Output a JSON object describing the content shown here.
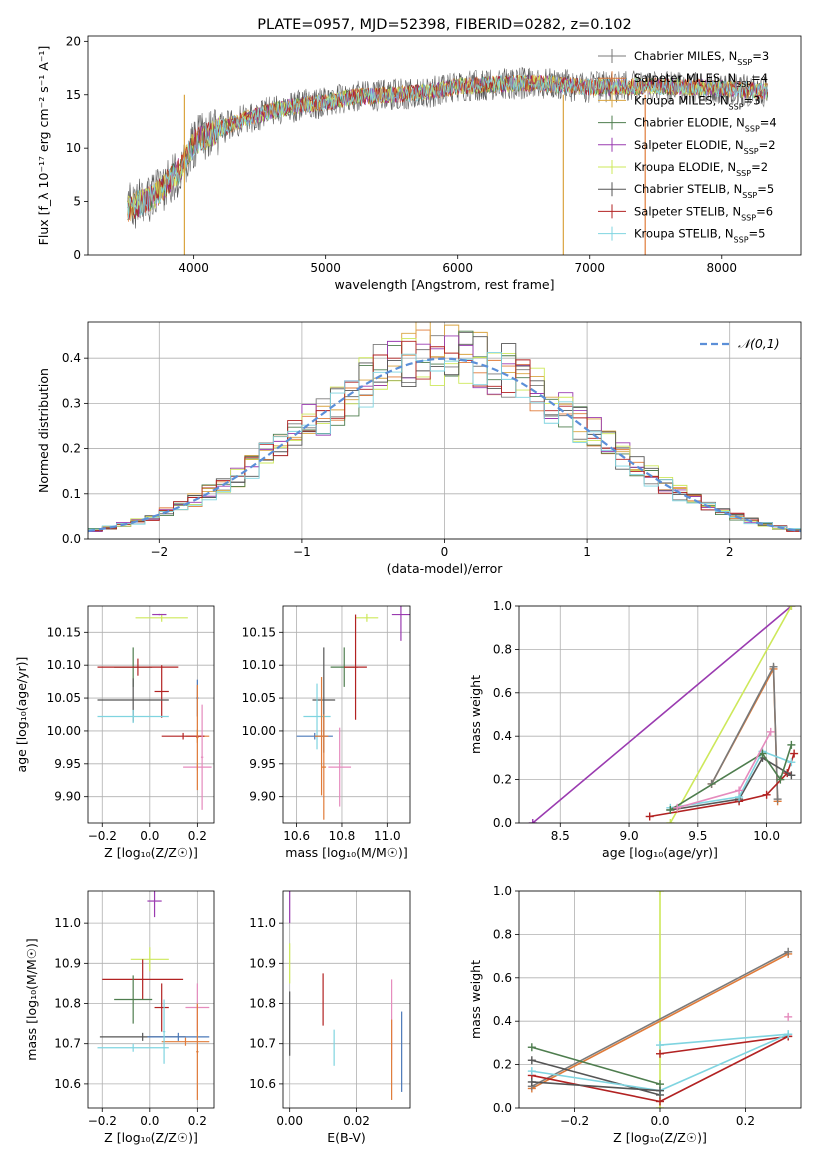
{
  "colors": {
    "chabrier_miles": "#7a7a7a",
    "salpeter_miles": "#e07b39",
    "kroupa_miles": "#d9a440",
    "chabrier_elodie": "#4e7d4e",
    "salpeter_elodie": "#9a3bb0",
    "kroupa_elodie": "#cde85a",
    "chabrier_stelib": "#555555",
    "salpeter_stelib": "#b22222",
    "kroupa_stelib": "#7fd4e0",
    "normal": "#5b8fd8",
    "pink": "#e58bbd",
    "steel": "#4a78b8"
  },
  "chart_data": [
    {
      "id": "spectrum",
      "type": "line",
      "title": "PLATE=0957, MJD=52398, FIBERID=0282, z=0.102",
      "xlabel": "wavelength [Angstrom, rest frame]",
      "ylabel": "Flux [f_λ 10⁻¹⁷ erg cm⁻² s⁻¹ A⁻¹]",
      "xlim": [
        3200,
        8600
      ],
      "ylim": [
        0,
        20.5
      ],
      "xticks": [
        4000,
        5000,
        6000,
        7000,
        8000
      ],
      "yticks": [
        0,
        5,
        10,
        15,
        20
      ],
      "legend_position": "right",
      "legend": [
        {
          "label": "Chabrier MILES, N_SSP=3",
          "color": "chabrier_miles"
        },
        {
          "label": "Salpeter MILES, N_SSP=4",
          "color": "salpeter_miles"
        },
        {
          "label": "Kroupa MILES, N_SSP=3",
          "color": "kroupa_miles"
        },
        {
          "label": "Chabrier ELODIE, N_SSP=4",
          "color": "chabrier_elodie"
        },
        {
          "label": "Salpeter ELODIE, N_SSP=2",
          "color": "salpeter_elodie"
        },
        {
          "label": "Kroupa ELODIE, N_SSP=2",
          "color": "kroupa_elodie"
        },
        {
          "label": "Chabrier STELIB, N_SSP=5",
          "color": "chabrier_stelib"
        },
        {
          "label": "Salpeter STELIB, N_SSP=6",
          "color": "salpeter_stelib"
        },
        {
          "label": "Kroupa STELIB, N_SSP=5",
          "color": "kroupa_stelib"
        }
      ],
      "continuum": [
        [
          3500,
          4.3
        ],
        [
          3700,
          5.5
        ],
        [
          3900,
          8.0
        ],
        [
          4000,
          10.5
        ],
        [
          4200,
          11.8
        ],
        [
          4400,
          12.8
        ],
        [
          4600,
          13.5
        ],
        [
          4800,
          14.0
        ],
        [
          5000,
          14.3
        ],
        [
          5200,
          14.8
        ],
        [
          5500,
          15.0
        ],
        [
          5800,
          15.3
        ],
        [
          6000,
          15.8
        ],
        [
          6300,
          16.0
        ],
        [
          6600,
          16.1
        ],
        [
          7000,
          15.7
        ],
        [
          7500,
          15.8
        ],
        [
          8000,
          15.6
        ],
        [
          8350,
          15.3
        ]
      ],
      "spikes": [
        {
          "x": 3930,
          "color": "kroupa_miles"
        },
        {
          "x": 6800,
          "color": "kroupa_miles"
        },
        {
          "x": 7420,
          "color": "salpeter_miles"
        }
      ]
    },
    {
      "id": "residual_histogram",
      "type": "bar",
      "xlabel": "(data-model)/error",
      "ylabel": "Normed distribution",
      "xlim": [
        -2.5,
        2.5
      ],
      "ylim": [
        0,
        0.48
      ],
      "xticks": [
        -2,
        -1,
        0,
        1,
        2
      ],
      "yticks": [
        0.0,
        0.1,
        0.2,
        0.3,
        0.4
      ],
      "bin_width": 0.1,
      "legend_position": "upper right",
      "legend": [
        {
          "label": "𝒩(0,1)",
          "color": "normal",
          "style": "dashed"
        }
      ],
      "series_colors": [
        "chabrier_miles",
        "salpeter_miles",
        "kroupa_miles",
        "chabrier_elodie",
        "salpeter_elodie",
        "kroupa_elodie",
        "chabrier_stelib",
        "salpeter_stelib",
        "kroupa_stelib"
      ]
    },
    {
      "id": "age_vs_Z",
      "type": "scatter",
      "xlabel": "Z [log₁₀(Z/Z☉)]",
      "ylabel": "age  [log₁₀(age/yr)]",
      "xlim": [
        -0.26,
        0.27
      ],
      "ylim": [
        9.86,
        10.19
      ],
      "xticks": [
        -0.2,
        0.0,
        0.2
      ],
      "yticks": [
        9.9,
        9.95,
        10.0,
        10.05,
        10.1,
        10.15
      ],
      "points": [
        {
          "x": 0.05,
          "y": 10.172,
          "xerr": 0.11,
          "yerr": 0.006,
          "color": "kroupa_elodie"
        },
        {
          "x": 0.04,
          "y": 10.177,
          "xerr": 0.03,
          "yerr": 0.001,
          "color": "salpeter_elodie"
        },
        {
          "x": -0.07,
          "y": 10.097,
          "xerr": 0.08,
          "yerr": 0.03,
          "color": "chabrier_elodie"
        },
        {
          "x": -0.05,
          "y": 10.097,
          "xerr": 0.17,
          "yerr": 0.013,
          "color": "salpeter_stelib"
        },
        {
          "x": 0.05,
          "y": 10.06,
          "xerr": 0.03,
          "yerr": 0.04,
          "color": "salpeter_stelib"
        },
        {
          "x": -0.07,
          "y": 10.047,
          "xerr": 0.15,
          "yerr": 0.033,
          "color": "chabrier_stelib"
        },
        {
          "x": -0.07,
          "y": 10.022,
          "xerr": 0.15,
          "yerr": 0.01,
          "color": "kroupa_stelib"
        },
        {
          "x": 0.2,
          "y": 10.05,
          "xerr": 0.005,
          "yerr": 0.028,
          "color": "steel"
        },
        {
          "x": 0.2,
          "y": 9.992,
          "xerr": 0.05,
          "yerr": 0.01,
          "color": "salpeter_miles"
        },
        {
          "x": 0.14,
          "y": 9.992,
          "xerr": 0.09,
          "yerr": 0.005,
          "color": "salpeter_stelib"
        },
        {
          "x": 0.2,
          "y": 9.945,
          "xerr": 0.06,
          "yerr": 0.005,
          "color": "pink"
        },
        {
          "x": 0.22,
          "y": 9.96,
          "xerr": 0.005,
          "yerr": 0.08,
          "color": "pink"
        },
        {
          "x": 0.2,
          "y": 9.99,
          "xerr": 0.005,
          "yerr": 0.08,
          "color": "salpeter_miles"
        }
      ]
    },
    {
      "id": "age_vs_mass",
      "type": "scatter",
      "xlabel": "mass [log₁₀(M/M☉)]",
      "ylabel": "",
      "xlim": [
        10.54,
        11.1
      ],
      "ylim": [
        9.86,
        10.19
      ],
      "xticks": [
        10.6,
        10.8,
        11.0
      ],
      "yticks": [
        9.9,
        9.95,
        10.0,
        10.05,
        10.1,
        10.15
      ],
      "points": [
        {
          "x": 10.91,
          "y": 10.172,
          "xerr": 0.05,
          "yerr": 0.006,
          "color": "kroupa_elodie"
        },
        {
          "x": 11.06,
          "y": 10.177,
          "xerr": 0.04,
          "yerr": 0.04,
          "color": "salpeter_elodie"
        },
        {
          "x": 10.81,
          "y": 10.097,
          "xerr": 0.06,
          "yerr": 0.03,
          "color": "chabrier_elodie"
        },
        {
          "x": 10.86,
          "y": 10.097,
          "xerr": 0.05,
          "yerr": 0.08,
          "color": "salpeter_stelib"
        },
        {
          "x": 10.72,
          "y": 10.047,
          "xerr": 0.05,
          "yerr": 0.08,
          "color": "chabrier_stelib"
        },
        {
          "x": 10.69,
          "y": 10.022,
          "xerr": 0.06,
          "yerr": 0.05,
          "color": "kroupa_stelib"
        },
        {
          "x": 10.68,
          "y": 9.992,
          "xerr": 0.08,
          "yerr": 0.005,
          "color": "steel"
        },
        {
          "x": 10.71,
          "y": 9.992,
          "xerr": 0.03,
          "yerr": 0.09,
          "color": "salpeter_miles"
        },
        {
          "x": 10.79,
          "y": 9.945,
          "xerr": 0.05,
          "yerr": 0.06,
          "color": "pink"
        },
        {
          "x": 10.72,
          "y": 9.945,
          "xerr": 0.01,
          "yerr": 0.08,
          "color": "salpeter_miles"
        }
      ]
    },
    {
      "id": "mass_weight_vs_age",
      "type": "line",
      "xlabel": "age  [log₁₀(age/yr)]",
      "ylabel": "mass weight",
      "xlim": [
        8.2,
        10.25
      ],
      "ylim": [
        0,
        1.0
      ],
      "xticks": [
        8.5,
        9.0,
        9.5,
        10.0
      ],
      "yticks": [
        0.0,
        0.2,
        0.4,
        0.6,
        0.8,
        1.0
      ],
      "series": [
        {
          "color": "salpeter_elodie",
          "x": [
            8.3,
            10.18
          ],
          "y": [
            0.0,
            1.0
          ]
        },
        {
          "color": "kroupa_elodie",
          "x": [
            9.3,
            10.18
          ],
          "y": [
            0.0,
            1.0
          ]
        },
        {
          "color": "salpeter_miles",
          "x": [
            9.6,
            10.05,
            10.08
          ],
          "y": [
            0.18,
            0.71,
            0.1
          ]
        },
        {
          "color": "chabrier_miles",
          "x": [
            9.6,
            10.05,
            10.08
          ],
          "y": [
            0.18,
            0.72,
            0.11
          ]
        },
        {
          "color": "salpeter_stelib",
          "x": [
            9.15,
            9.8,
            10.0,
            10.15,
            10.2
          ],
          "y": [
            0.03,
            0.1,
            0.13,
            0.23,
            0.32
          ]
        },
        {
          "color": "chabrier_stelib",
          "x": [
            9.3,
            9.8,
            9.97,
            10.18
          ],
          "y": [
            0.06,
            0.11,
            0.3,
            0.22
          ]
        },
        {
          "color": "kroupa_stelib",
          "x": [
            9.3,
            9.8,
            9.97,
            10.18
          ],
          "y": [
            0.07,
            0.12,
            0.33,
            0.28
          ]
        },
        {
          "color": "chabrier_elodie",
          "x": [
            9.3,
            9.97,
            10.1,
            10.18
          ],
          "y": [
            0.06,
            0.32,
            0.2,
            0.36
          ]
        },
        {
          "color": "pink",
          "x": [
            9.35,
            9.8,
            10.03
          ],
          "y": [
            0.07,
            0.15,
            0.42
          ]
        }
      ]
    },
    {
      "id": "mass_vs_Z",
      "type": "scatter",
      "xlabel": "Z [log₁₀(Z/Z☉)]",
      "ylabel": "mass [log₁₀(M/M☉)]",
      "xlim": [
        -0.26,
        0.27
      ],
      "ylim": [
        10.54,
        11.08
      ],
      "xticks": [
        -0.2,
        0.0,
        0.2
      ],
      "yticks": [
        10.6,
        10.7,
        10.8,
        10.9,
        11.0
      ],
      "points": [
        {
          "x": 0.02,
          "y": 11.055,
          "xerr": 0.03,
          "yerr": 0.04,
          "color": "salpeter_elodie"
        },
        {
          "x": 0.0,
          "y": 10.91,
          "xerr": 0.08,
          "yerr": 0.03,
          "color": "kroupa_elodie"
        },
        {
          "x": -0.03,
          "y": 10.86,
          "xerr": 0.17,
          "yerr": 0.05,
          "color": "salpeter_stelib"
        },
        {
          "x": -0.07,
          "y": 10.81,
          "xerr": 0.08,
          "yerr": 0.06,
          "color": "chabrier_elodie"
        },
        {
          "x": 0.05,
          "y": 10.79,
          "xerr": 0.03,
          "yerr": 0.06,
          "color": "salpeter_stelib"
        },
        {
          "x": 0.2,
          "y": 10.79,
          "xerr": 0.05,
          "yerr": 0.06,
          "color": "pink"
        },
        {
          "x": -0.03,
          "y": 10.717,
          "xerr": 0.18,
          "yerr": 0.01,
          "color": "chabrier_stelib"
        },
        {
          "x": 0.12,
          "y": 10.717,
          "xerr": 0.13,
          "yerr": 0.01,
          "color": "steel"
        },
        {
          "x": 0.15,
          "y": 10.705,
          "xerr": 0.1,
          "yerr": 0.01,
          "color": "salpeter_miles"
        },
        {
          "x": -0.07,
          "y": 10.69,
          "xerr": 0.15,
          "yerr": 0.01,
          "color": "kroupa_stelib"
        },
        {
          "x": 0.2,
          "y": 10.68,
          "xerr": 0.005,
          "yerr": 0.12,
          "color": "salpeter_miles"
        },
        {
          "x": 0.06,
          "y": 10.73,
          "xerr": 0.005,
          "yerr": 0.08,
          "color": "kroupa_stelib"
        }
      ]
    },
    {
      "id": "mass_vs_ebv",
      "type": "scatter",
      "xlabel": "E(B-V)",
      "ylabel": "",
      "xlim": [
        -0.002,
        0.036
      ],
      "ylim": [
        10.54,
        11.08
      ],
      "xticks": [
        0.0,
        0.02
      ],
      "yticks": [
        10.6,
        10.7,
        10.8,
        10.9,
        11.0
      ],
      "points": [
        {
          "x": 0.0,
          "y": 11.04,
          "xerr": 0.0,
          "yerr": 0.04,
          "color": "salpeter_elodie"
        },
        {
          "x": 0.0,
          "y": 10.9,
          "xerr": 0.0,
          "yerr": 0.05,
          "color": "kroupa_elodie"
        },
        {
          "x": 0.0,
          "y": 10.75,
          "xerr": 0.0,
          "yerr": 0.08,
          "color": "chabrier_stelib"
        },
        {
          "x": 0.01,
          "y": 10.81,
          "xerr": 0.0,
          "yerr": 0.065,
          "color": "salpeter_stelib"
        },
        {
          "x": 0.0133,
          "y": 10.69,
          "xerr": 0.0,
          "yerr": 0.045,
          "color": "kroupa_stelib"
        },
        {
          "x": 0.0305,
          "y": 10.76,
          "xerr": 0.0,
          "yerr": 0.1,
          "color": "pink"
        },
        {
          "x": 0.0305,
          "y": 10.66,
          "xerr": 0.0,
          "yerr": 0.1,
          "color": "salpeter_miles"
        },
        {
          "x": 0.0335,
          "y": 10.68,
          "xerr": 0.0,
          "yerr": 0.1,
          "color": "steel"
        }
      ]
    },
    {
      "id": "mass_weight_vs_Z",
      "type": "line",
      "xlabel": "Z [log₁₀(Z/Z☉)]",
      "ylabel": "mass weight",
      "xlim": [
        -0.33,
        0.33
      ],
      "ylim": [
        0,
        1.0
      ],
      "xticks": [
        -0.2,
        0.0,
        0.2
      ],
      "yticks": [
        0.0,
        0.2,
        0.4,
        0.6,
        0.8,
        1.0
      ],
      "series": [
        {
          "color": "kroupa_elodie",
          "x": [
            0.0,
            0.0
          ],
          "y": [
            0.0,
            1.0
          ]
        },
        {
          "color": "salpeter_miles",
          "x": [
            -0.3,
            0.3
          ],
          "y": [
            0.09,
            0.71
          ]
        },
        {
          "color": "chabrier_miles",
          "x": [
            -0.3,
            0.3
          ],
          "y": [
            0.1,
            0.72
          ]
        },
        {
          "color": "chabrier_elodie",
          "x": [
            -0.3,
            0.0
          ],
          "y": [
            0.28,
            0.11
          ]
        },
        {
          "color": "chabrier_stelib",
          "x": [
            -0.3,
            0.0
          ],
          "y": [
            0.22,
            0.06
          ]
        },
        {
          "color": "salpeter_stelib",
          "x": [
            -0.3,
            0.0,
            0.3
          ],
          "y": [
            0.15,
            0.03,
            0.33
          ]
        },
        {
          "color": "salpeter_stelib",
          "x": [
            0.0,
            0.3
          ],
          "y": [
            0.25,
            0.33
          ]
        },
        {
          "color": "kroupa_stelib",
          "x": [
            -0.3,
            0.0,
            0.3
          ],
          "y": [
            0.17,
            0.08,
            0.34
          ]
        },
        {
          "color": "kroupa_stelib",
          "x": [
            0.0,
            0.3
          ],
          "y": [
            0.29,
            0.34
          ]
        },
        {
          "color": "chabrier_stelib",
          "x": [
            -0.3,
            0.0
          ],
          "y": [
            0.12,
            0.08
          ]
        },
        {
          "color": "pink",
          "x": [
            0.3
          ],
          "y": [
            0.42
          ]
        }
      ]
    }
  ]
}
